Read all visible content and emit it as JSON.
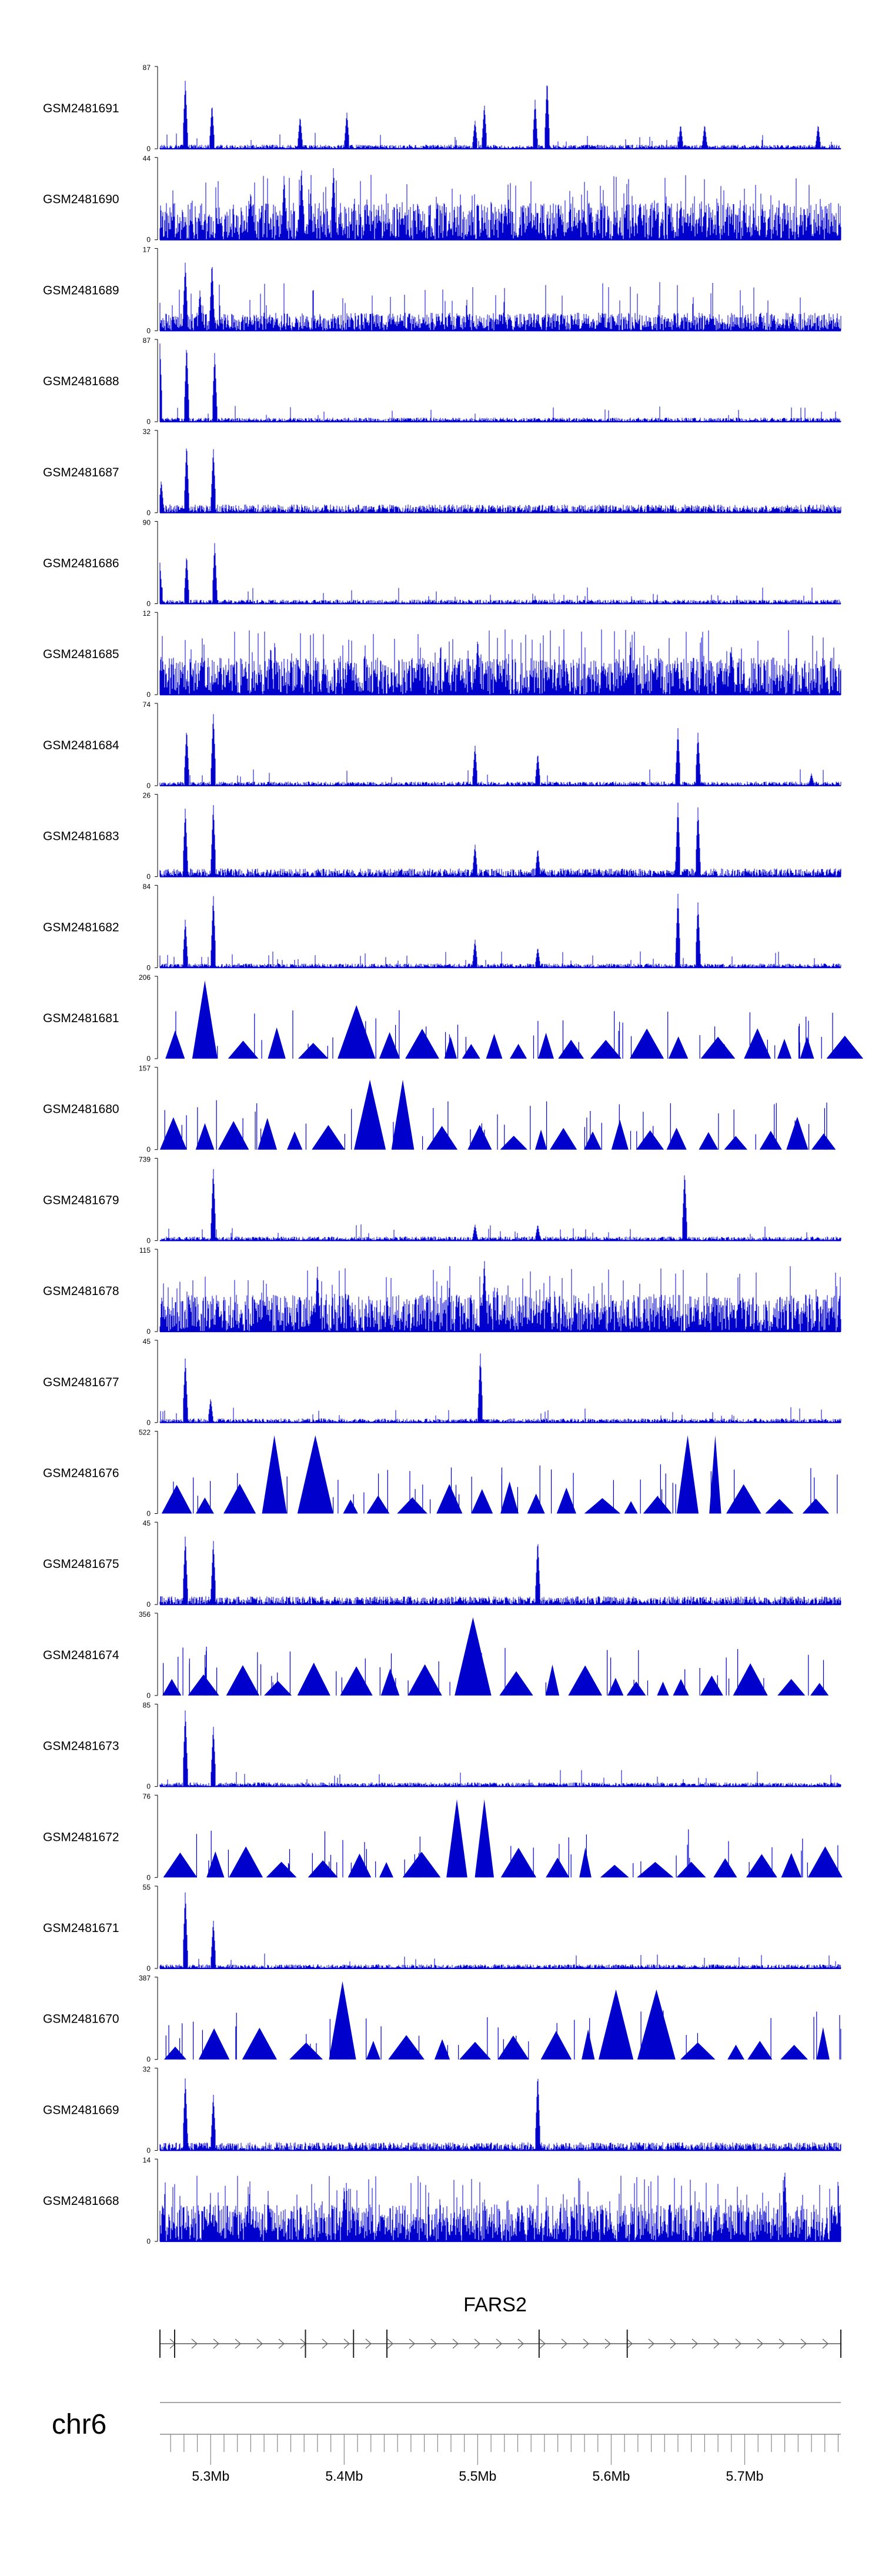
{
  "chart_data": {
    "type": "area",
    "title": "",
    "xlabel": "",
    "ylabel": "",
    "x_range_mb": [
      5.262,
      5.772
    ],
    "series_color": "#0000cc",
    "tracks": [
      {
        "name": "GSM2481691",
        "ymax": "87",
        "ymin": "0",
        "style": "peaky",
        "peaks": [
          [
            5.281,
            0.85
          ],
          [
            5.301,
            0.55
          ],
          [
            5.367,
            0.4
          ],
          [
            5.402,
            0.45
          ],
          [
            5.498,
            0.35
          ],
          [
            5.505,
            0.55
          ],
          [
            5.543,
            0.6
          ],
          [
            5.552,
            0.85
          ],
          [
            5.652,
            0.3
          ],
          [
            5.67,
            0.3
          ],
          [
            5.755,
            0.3
          ]
        ]
      },
      {
        "name": "GSM2481690",
        "ymax": "44",
        "ymin": "0",
        "style": "dense",
        "peaks": [
          [
            5.355,
            0.8
          ],
          [
            5.368,
            0.9
          ],
          [
            5.392,
            0.9
          ],
          [
            5.33,
            0.6
          ]
        ]
      },
      {
        "name": "GSM2481689",
        "ymax": "17",
        "ymin": "0",
        "style": "noisy",
        "peaks": [
          [
            5.281,
            0.85
          ],
          [
            5.301,
            0.85
          ],
          [
            5.292,
            0.5
          ]
        ]
      },
      {
        "name": "GSM2481688",
        "ymax": "87",
        "ymin": "0",
        "style": "peaky",
        "peaks": [
          [
            5.262,
            0.95
          ],
          [
            5.282,
            0.95
          ],
          [
            5.303,
            0.85
          ]
        ]
      },
      {
        "name": "GSM2481687",
        "ymax": "32",
        "ymin": "0",
        "style": "noisy_low",
        "peaks": [
          [
            5.282,
            0.85
          ],
          [
            5.302,
            0.8
          ],
          [
            5.263,
            0.4
          ]
        ]
      },
      {
        "name": "GSM2481686",
        "ymax": "90",
        "ymin": "0",
        "style": "peaky",
        "peaks": [
          [
            5.262,
            0.5
          ],
          [
            5.282,
            0.6
          ],
          [
            5.303,
            0.75
          ]
        ]
      },
      {
        "name": "GSM2481685",
        "ymax": "12",
        "ymin": "0",
        "style": "dense",
        "peaks": [
          [
            5.5,
            0.7
          ],
          [
            5.345,
            0.6
          ],
          [
            5.69,
            0.6
          ]
        ]
      },
      {
        "name": "GSM2481684",
        "ymax": "74",
        "ymin": "0",
        "style": "peaky",
        "peaks": [
          [
            5.282,
            0.7
          ],
          [
            5.302,
            0.9
          ],
          [
            5.498,
            0.5
          ],
          [
            5.545,
            0.4
          ],
          [
            5.65,
            0.7
          ],
          [
            5.665,
            0.65
          ],
          [
            5.75,
            0.15
          ]
        ]
      },
      {
        "name": "GSM2481683",
        "ymax": "26",
        "ymin": "0",
        "style": "noisy_low",
        "peaks": [
          [
            5.281,
            0.85
          ],
          [
            5.302,
            0.9
          ],
          [
            5.498,
            0.4
          ],
          [
            5.545,
            0.35
          ],
          [
            5.65,
            0.9
          ],
          [
            5.665,
            0.85
          ]
        ]
      },
      {
        "name": "GSM2481682",
        "ymax": "84",
        "ymin": "0",
        "style": "peaky",
        "peaks": [
          [
            5.281,
            0.6
          ],
          [
            5.302,
            0.9
          ],
          [
            5.498,
            0.35
          ],
          [
            5.545,
            0.25
          ],
          [
            5.65,
            0.9
          ],
          [
            5.665,
            0.8
          ]
        ]
      },
      {
        "name": "GSM2481681",
        "ymax": "206",
        "ymin": "0",
        "style": "triangles",
        "peaks": [
          [
            5.3,
            0.95
          ],
          [
            5.402,
            0.65
          ]
        ]
      },
      {
        "name": "GSM2481680",
        "ymax": "157",
        "ymin": "0",
        "style": "triangles",
        "peaks": [
          [
            5.442,
            0.85
          ]
        ]
      },
      {
        "name": "GSM2481679",
        "ymax": "739",
        "ymin": "0",
        "style": "peaky",
        "peaks": [
          [
            5.302,
            0.9
          ],
          [
            5.655,
            0.85
          ],
          [
            5.498,
            0.2
          ],
          [
            5.545,
            0.2
          ]
        ]
      },
      {
        "name": "GSM2481678",
        "ymax": "115",
        "ymin": "0",
        "style": "dense",
        "peaks": [
          [
            5.505,
            0.9
          ],
          [
            5.38,
            0.8
          ]
        ]
      },
      {
        "name": "GSM2481677",
        "ymax": "45",
        "ymin": "0",
        "style": "peaky",
        "peaks": [
          [
            5.281,
            0.8
          ],
          [
            5.502,
            0.85
          ],
          [
            5.3,
            0.3
          ]
        ]
      },
      {
        "name": "GSM2481676",
        "ymax": "522",
        "ymin": "0",
        "style": "triangles",
        "peaks": [
          [
            5.362,
            0.95
          ],
          [
            5.672,
            0.95
          ]
        ]
      },
      {
        "name": "GSM2481675",
        "ymax": "45",
        "ymin": "0",
        "style": "noisy_low",
        "peaks": [
          [
            5.281,
            0.85
          ],
          [
            5.302,
            0.8
          ],
          [
            5.545,
            0.8
          ]
        ]
      },
      {
        "name": "GSM2481674",
        "ymax": "356",
        "ymin": "0",
        "style": "triangles",
        "peaks": [
          [
            5.497,
            0.95
          ]
        ]
      },
      {
        "name": "GSM2481673",
        "ymax": "85",
        "ymin": "0",
        "style": "peaky",
        "peaks": [
          [
            5.281,
            0.95
          ],
          [
            5.302,
            0.75
          ]
        ]
      },
      {
        "name": "GSM2481672",
        "ymax": "76",
        "ymin": "0",
        "style": "triangles",
        "peaks": [
          [
            5.492,
            0.95
          ]
        ]
      },
      {
        "name": "GSM2481671",
        "ymax": "55",
        "ymin": "0",
        "style": "peaky",
        "peaks": [
          [
            5.281,
            0.95
          ],
          [
            5.302,
            0.6
          ]
        ]
      },
      {
        "name": "GSM2481670",
        "ymax": "387",
        "ymin": "0",
        "style": "triangles",
        "peaks": [
          [
            5.402,
            0.95
          ],
          [
            5.608,
            0.85
          ]
        ]
      },
      {
        "name": "GSM2481669",
        "ymax": "32",
        "ymin": "0",
        "style": "noisy_low",
        "peaks": [
          [
            5.281,
            0.9
          ],
          [
            5.545,
            0.95
          ],
          [
            5.302,
            0.7
          ]
        ]
      },
      {
        "name": "GSM2481668",
        "ymax": "14",
        "ymin": "0",
        "style": "dense",
        "peaks": [
          [
            5.73,
            0.9
          ],
          [
            5.4,
            0.7
          ]
        ]
      }
    ],
    "gene": {
      "label": "FARS2",
      "start_mb": 5.262,
      "end_mb": 5.772,
      "exons_mb": [
        5.262,
        5.273,
        5.371,
        5.407,
        5.432,
        5.546,
        5.612,
        5.772
      ],
      "strand": "+"
    },
    "chromosome": "chr6",
    "axis_ticks": [
      {
        "mb": 5.3,
        "label": "5.3Mb"
      },
      {
        "mb": 5.4,
        "label": "5.4Mb"
      },
      {
        "mb": 5.5,
        "label": "5.5Mb"
      },
      {
        "mb": 5.6,
        "label": "5.6Mb"
      },
      {
        "mb": 5.7,
        "label": "5.7Mb"
      }
    ]
  }
}
